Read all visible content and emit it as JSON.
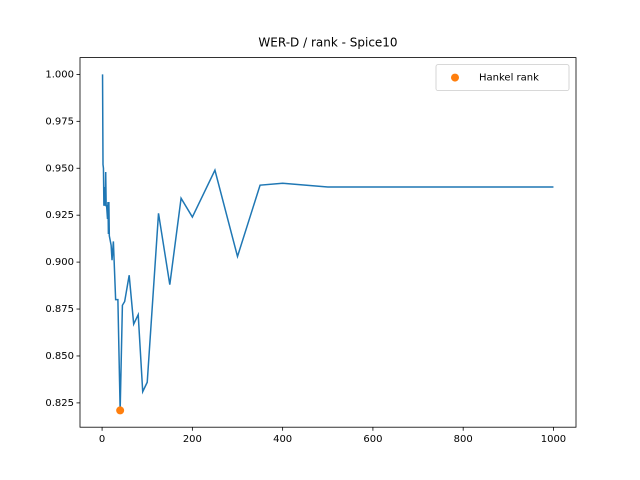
{
  "chart_data": {
    "type": "line",
    "title": "WER-D / rank - Spice10",
    "x": [
      1,
      2,
      3,
      4,
      5,
      6,
      7,
      8,
      9,
      10,
      12,
      13,
      14,
      15,
      16,
      20,
      22,
      25,
      30,
      35,
      40,
      45,
      50,
      60,
      70,
      80,
      90,
      100,
      125,
      150,
      175,
      200,
      250,
      300,
      350,
      400,
      500,
      1000
    ],
    "series": [
      {
        "name": null,
        "color": "#1f77b4",
        "style": "line",
        "x": [
          1,
          2,
          3,
          4,
          5,
          6,
          7,
          8,
          9,
          10,
          12,
          13,
          14,
          15,
          16,
          20,
          22,
          25,
          30,
          35,
          40,
          45,
          50,
          60,
          70,
          80,
          90,
          100,
          125,
          150,
          175,
          200,
          250,
          300,
          350,
          400,
          500,
          1000
        ],
        "values": [
          1.0,
          0.952,
          0.95,
          0.93,
          0.94,
          0.935,
          0.93,
          0.948,
          0.93,
          0.93,
          0.923,
          0.932,
          0.915,
          0.932,
          0.914,
          0.909,
          0.901,
          0.911,
          0.88,
          0.88,
          0.821,
          0.877,
          0.879,
          0.893,
          0.867,
          0.872,
          0.831,
          0.836,
          0.926,
          0.888,
          0.934,
          0.924,
          0.949,
          0.903,
          0.941,
          0.942,
          0.94,
          0.94
        ]
      },
      {
        "name": "Hankel rank",
        "color": "#ff7f0e",
        "style": "marker",
        "x": [
          40
        ],
        "values": [
          0.821
        ]
      }
    ],
    "xlim": [
      -48.95,
      1049.95
    ],
    "ylim": [
      0.81205,
      1.00895
    ],
    "xticks": [
      0,
      200,
      400,
      600,
      800,
      1000
    ],
    "yticks": [
      {
        "value": 0.825,
        "label": "0.825"
      },
      {
        "value": 0.85,
        "label": "0.850"
      },
      {
        "value": 0.875,
        "label": "0.875"
      },
      {
        "value": 0.9,
        "label": "0.900"
      },
      {
        "value": 0.925,
        "label": "0.925"
      },
      {
        "value": 0.95,
        "label": "0.950"
      },
      {
        "value": 0.975,
        "label": "0.975"
      },
      {
        "value": 1.0,
        "label": "1.000"
      }
    ],
    "legend": "upper right"
  }
}
